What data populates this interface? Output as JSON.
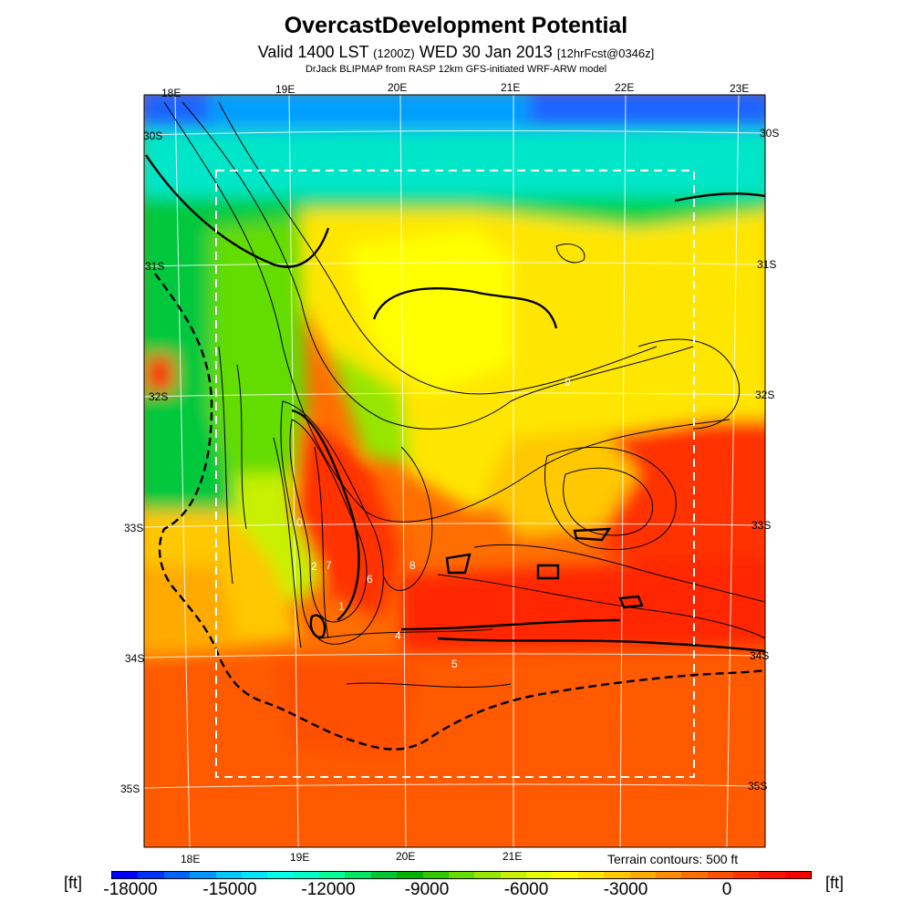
{
  "header": {
    "title": "OvercastDevelopment Potential",
    "valid_prefix": "Valid 1400 LST",
    "valid_utc": "(1200Z)",
    "valid_date": "WED 30 Jan 2013",
    "forecast_tag": "[12hrFcst@0346z]",
    "subtitle": "DrJack BLIPMAP from RASP 12km GFS-initiated WRF-ARW model"
  },
  "map": {
    "lon_top": [
      "18E",
      "19E",
      "20E",
      "21E",
      "22E",
      "23E"
    ],
    "lon_bottom": [
      "18E",
      "19E",
      "20E",
      "21E"
    ],
    "lat_left": [
      "30S",
      "31S",
      "32S",
      "33S",
      "34S",
      "35S"
    ],
    "lat_right": [
      "30S",
      "31S",
      "32S",
      "33S",
      "34S",
      "35S"
    ],
    "station_labels": [
      "0",
      "1",
      "2",
      "4",
      "5",
      "6",
      "7",
      "8",
      "9"
    ],
    "terrain_note": "Terrain contours: 500 ft",
    "field_units": "[ft]"
  },
  "colorbar": {
    "labels": [
      "-18000",
      "-15000",
      "-12000",
      "-9000",
      "-6000",
      "-3000",
      "0"
    ],
    "colors": [
      "#0000ff",
      "#0032ff",
      "#0064ff",
      "#0096ff",
      "#00c8ff",
      "#00e6ff",
      "#00ffe6",
      "#00ffc8",
      "#00ff96",
      "#00e664",
      "#00c832",
      "#00b400",
      "#32c800",
      "#64dc00",
      "#96e600",
      "#c8f000",
      "#e6ff00",
      "#ffff00",
      "#ffe600",
      "#ffc800",
      "#ffaa00",
      "#ff8c00",
      "#ff6e00",
      "#ff5000",
      "#ff3200",
      "#ff1400",
      "#ff0000"
    ]
  }
}
